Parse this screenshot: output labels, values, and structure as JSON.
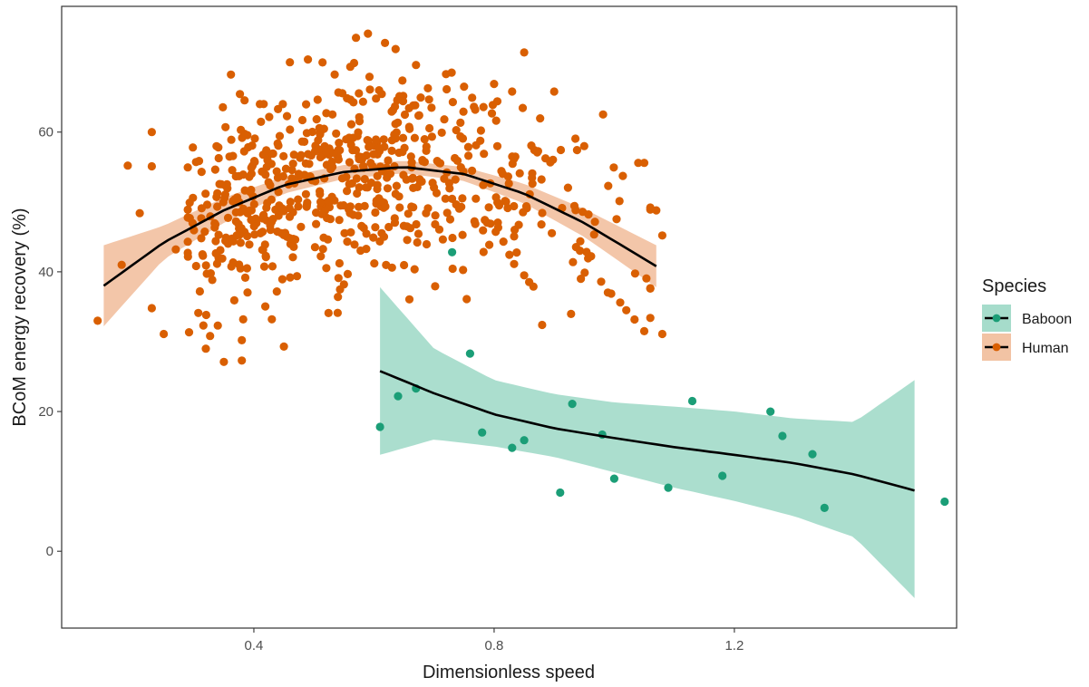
{
  "chart_data": {
    "type": "scatter",
    "xlabel": "Dimensionless speed",
    "ylabel": "BCoM energy recovery (%)",
    "xlim": [
      0.08,
      1.57
    ],
    "ylim": [
      -11,
      78
    ],
    "xticks": [
      {
        "value": 0.4,
        "label": "0.4"
      },
      {
        "value": 0.8,
        "label": "0.8"
      },
      {
        "value": 1.2,
        "label": "1.2"
      }
    ],
    "yticks": [
      {
        "value": 0,
        "label": "0"
      },
      {
        "value": 20,
        "label": "20"
      },
      {
        "value": 40,
        "label": "40"
      },
      {
        "value": 60,
        "label": "60"
      }
    ],
    "grid": false,
    "legend": {
      "title": "Species",
      "position": "right",
      "entries": [
        {
          "label": "Baboon",
          "point_color": "#1b9e77",
          "band_color": "#a6dccb"
        },
        {
          "label": "Human",
          "point_color": "#d95f02",
          "band_color": "#f2c3a4"
        }
      ]
    },
    "series": [
      {
        "name": "Baboon",
        "color": "#1b9e77",
        "points": [
          [
            0.61,
            17.8
          ],
          [
            0.64,
            22.2
          ],
          [
            0.67,
            23.3
          ],
          [
            0.73,
            42.8
          ],
          [
            0.76,
            28.3
          ],
          [
            0.78,
            17.0
          ],
          [
            0.83,
            14.8
          ],
          [
            0.85,
            15.9
          ],
          [
            0.91,
            8.4
          ],
          [
            0.93,
            21.1
          ],
          [
            0.98,
            16.7
          ],
          [
            1.0,
            10.4
          ],
          [
            1.09,
            9.1
          ],
          [
            1.13,
            21.5
          ],
          [
            1.18,
            10.8
          ],
          [
            1.26,
            20.0
          ],
          [
            1.28,
            16.5
          ],
          [
            1.33,
            13.9
          ],
          [
            1.35,
            6.2
          ],
          [
            1.55,
            7.1
          ]
        ],
        "smooth": {
          "x": [
            0.61,
            0.7,
            0.8,
            0.9,
            1.0,
            1.1,
            1.2,
            1.3,
            1.4,
            1.5
          ],
          "fit": [
            25.8,
            22.6,
            19.6,
            17.6,
            16.2,
            14.9,
            13.8,
            12.6,
            11.0,
            8.7
          ],
          "lower": [
            13.8,
            16.0,
            15.0,
            13.5,
            11.3,
            9.1,
            7.2,
            5.0,
            2.0,
            -6.7
          ],
          "upper": [
            37.8,
            29.0,
            24.5,
            22.5,
            21.3,
            20.7,
            20.0,
            19.0,
            18.5,
            24.5
          ]
        }
      },
      {
        "name": "Human",
        "color": "#d95f02",
        "seed": 7,
        "n_generated": 640,
        "points": [
          [
            0.14,
            33.0
          ],
          [
            0.18,
            41.0
          ],
          [
            0.19,
            55.2
          ],
          [
            0.21,
            48.4
          ],
          [
            0.23,
            60.0
          ],
          [
            0.23,
            55.1
          ],
          [
            0.23,
            34.8
          ],
          [
            0.25,
            31.1
          ],
          [
            0.27,
            43.2
          ],
          [
            0.31,
            37.2
          ],
          [
            0.32,
            29.0
          ],
          [
            0.34,
            32.3
          ],
          [
            0.35,
            27.1
          ],
          [
            0.38,
            27.3
          ],
          [
            0.38,
            30.2
          ],
          [
            0.41,
            64.0
          ],
          [
            0.43,
            33.2
          ],
          [
            0.45,
            29.3
          ],
          [
            0.46,
            70.0
          ],
          [
            0.49,
            70.4
          ],
          [
            0.54,
            36.4
          ],
          [
            0.55,
            38.2
          ],
          [
            0.57,
            73.5
          ],
          [
            0.59,
            74.1
          ],
          [
            0.63,
            40.6
          ],
          [
            0.67,
            69.6
          ],
          [
            0.72,
            68.3
          ],
          [
            0.75,
            66.5
          ],
          [
            0.8,
            66.9
          ],
          [
            0.83,
            65.8
          ],
          [
            0.85,
            71.4
          ],
          [
            0.85,
            39.5
          ],
          [
            0.88,
            32.4
          ],
          [
            0.9,
            65.8
          ],
          [
            0.95,
            58.0
          ],
          [
            0.99,
            52.3
          ],
          [
            1.01,
            35.6
          ],
          [
            1.02,
            34.5
          ],
          [
            1.04,
            55.6
          ],
          [
            1.05,
            55.6
          ],
          [
            1.05,
            31.5
          ],
          [
            1.06,
            33.4
          ],
          [
            1.06,
            49.2
          ],
          [
            1.06,
            37.6
          ],
          [
            1.07,
            48.8
          ],
          [
            1.08,
            31.1
          ],
          [
            1.08,
            45.2
          ],
          [
            1.06,
            48.9
          ]
        ],
        "smooth": {
          "x": [
            0.15,
            0.25,
            0.35,
            0.45,
            0.55,
            0.65,
            0.75,
            0.85,
            0.95,
            1.07
          ],
          "fit": [
            38.0,
            44.2,
            48.8,
            52.4,
            54.3,
            55.0,
            54.0,
            51.2,
            47.0,
            40.8
          ],
          "lower": [
            32.2,
            41.8,
            47.0,
            51.2,
            53.3,
            54.1,
            53.0,
            49.8,
            45.0,
            37.8
          ],
          "upper": [
            43.8,
            46.6,
            50.6,
            53.6,
            55.3,
            55.9,
            55.0,
            52.6,
            49.0,
            43.8
          ]
        }
      }
    ]
  }
}
